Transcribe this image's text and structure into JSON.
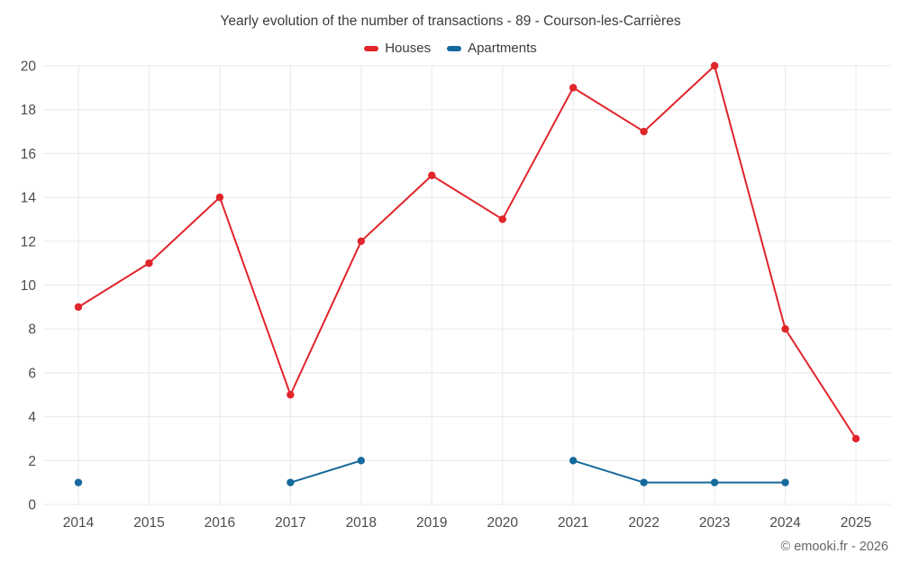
{
  "chart_data": {
    "type": "line",
    "title": "Yearly evolution of the number of transactions - 89 - Courson-les-Carrières",
    "categories": [
      "2014",
      "2015",
      "2016",
      "2017",
      "2018",
      "2019",
      "2020",
      "2021",
      "2022",
      "2023",
      "2024",
      "2025"
    ],
    "series": [
      {
        "name": "Houses",
        "color": "#e0252b",
        "values": [
          9,
          11,
          14,
          5,
          12,
          15,
          13,
          19,
          17,
          20,
          8,
          3
        ]
      },
      {
        "name": "Apartments",
        "color": "#16699b",
        "values": [
          1,
          null,
          null,
          1,
          2,
          null,
          null,
          2,
          1,
          1,
          1,
          null
        ]
      }
    ],
    "ylim": [
      0,
      20
    ],
    "ytick_step": 2,
    "grid": true,
    "legend_position": "top",
    "marker": "circle"
  },
  "footer": {
    "copyright": "© emooki.fr - 2026"
  },
  "style": {
    "grid_color": "#e8e8e8",
    "axis_label_color": "#4d4d4d",
    "title_color": "#3c3c3c"
  }
}
